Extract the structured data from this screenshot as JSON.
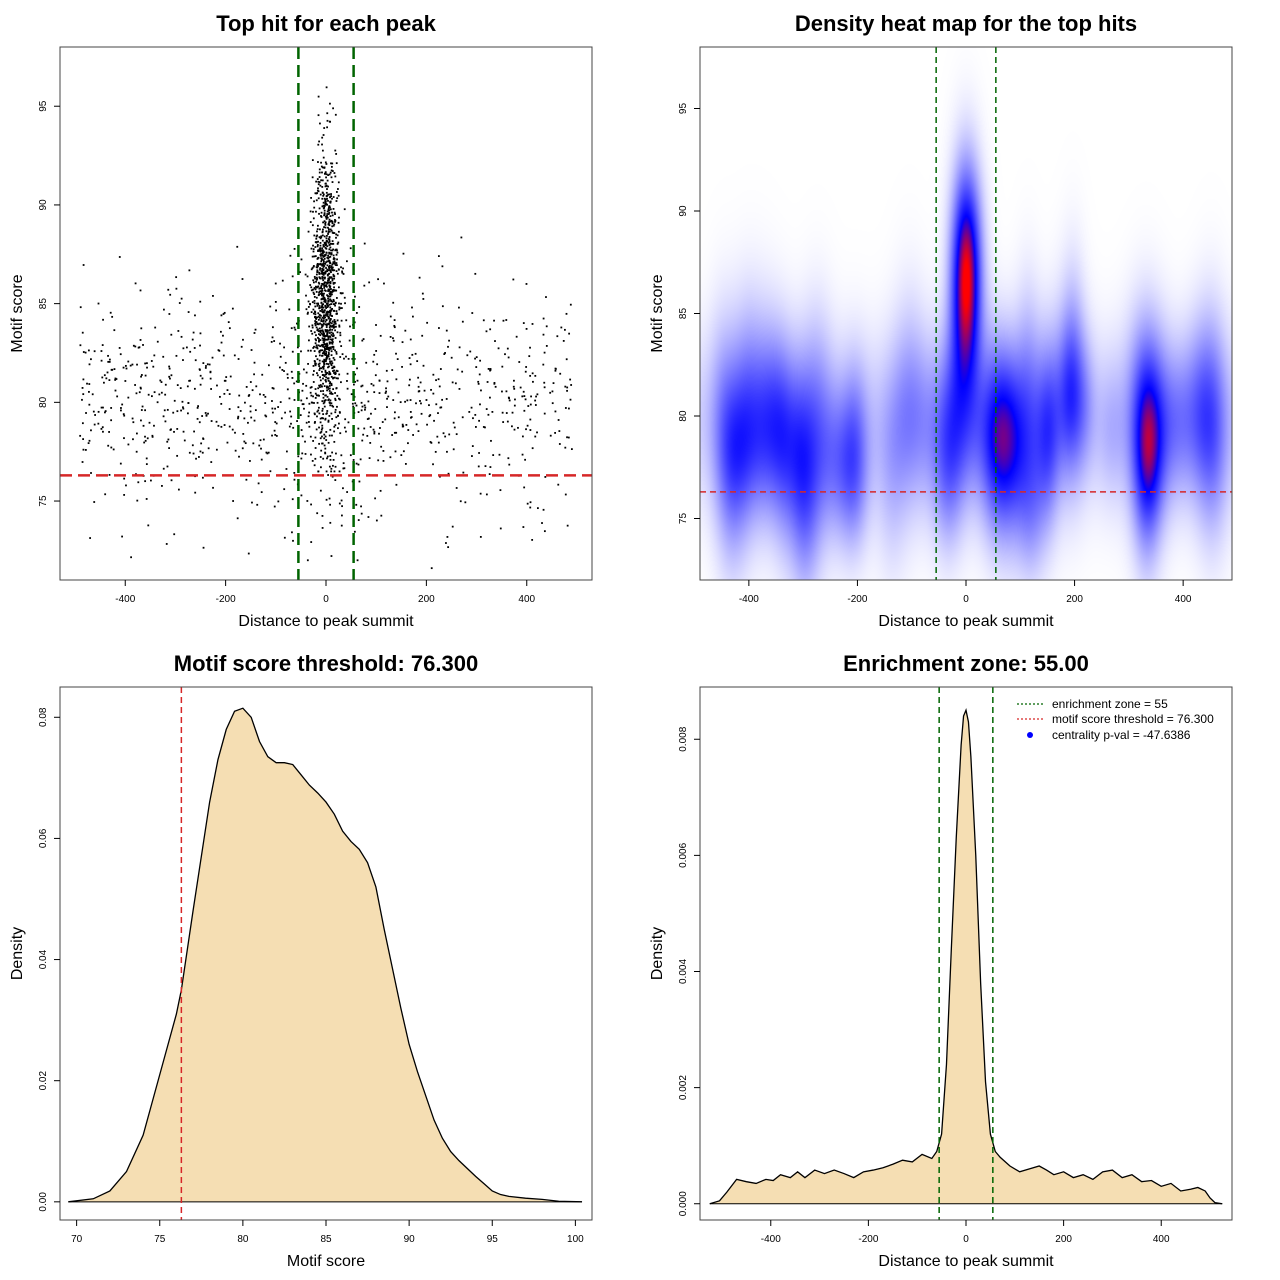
{
  "figure_titles": {
    "p1": "Top hit for each peak",
    "p2": "Density heat map for the top hits",
    "p3": "Motif score threshold: 76.300",
    "p4": "Enrichment zone: 55.00"
  },
  "axis_labels": {
    "p1_x": "Distance to peak summit",
    "p1_y": "Motif score",
    "p2_x": "Distance to peak summit",
    "p2_y": "Motif score",
    "p3_x": "Motif score",
    "p3_y": "Density",
    "p4_x": "Distance to peak summit",
    "p4_y": "Density"
  },
  "legend": {
    "enrichment": "enrichment zone = 55",
    "threshold": "motif score threshold = 76.300",
    "pval": "centrality p-val = -47.6386"
  },
  "colors": {
    "zone_line": "#006400",
    "threshold_line": "#d62728",
    "density_fill": "#f5deb3",
    "points": "#000000",
    "legend_dot": "#0000ff"
  },
  "chart_data": [
    {
      "type": "scatter",
      "title": "Top hit for each peak",
      "xlabel": "Distance to peak summit",
      "ylabel": "Motif score",
      "xlim": [
        -530,
        530
      ],
      "ylim": [
        71,
        98
      ],
      "xticks": [
        -400,
        -200,
        0,
        200,
        400
      ],
      "yticks": [
        75,
        80,
        85,
        90,
        95
      ],
      "vlines": [
        -55,
        55
      ],
      "hline": 76.3,
      "points_description": "about 2000 top hits; dense central column within about ±40 of the summit with scores mostly 78-94; sparse background across -490..490 with scores 72-88"
    },
    {
      "type": "heatmap",
      "title": "Density heat map for the top hits",
      "xlabel": "Distance to peak summit",
      "ylabel": "Motif score",
      "xlim": [
        -490,
        490
      ],
      "ylim": [
        72,
        98
      ],
      "xticks": [
        -400,
        -200,
        0,
        200,
        400
      ],
      "yticks": [
        75,
        80,
        85,
        90,
        95
      ],
      "vlines": [
        -55,
        55
      ],
      "hline": 76.3,
      "peak": {
        "x": 0,
        "y": 86.8
      }
    },
    {
      "type": "area",
      "title": "Motif score threshold: 76.300",
      "xlabel": "Motif score",
      "ylabel": "Density",
      "xlim": [
        69,
        101
      ],
      "ylim": [
        -0.003,
        0.085
      ],
      "xticks": [
        70,
        75,
        80,
        85,
        90,
        95,
        100
      ],
      "yticks": [
        0,
        0.02,
        0.04,
        0.06,
        0.08
      ],
      "ytick_labels": [
        "0.00",
        "0.02",
        "0.04",
        "0.06",
        "0.08"
      ],
      "vline": 76.3,
      "x": [
        69.5,
        71,
        72,
        73,
        74,
        75,
        76,
        76.3,
        77,
        78,
        78.5,
        79,
        79.5,
        80,
        80.5,
        81,
        81.5,
        82,
        82.5,
        83,
        83.5,
        84,
        84.5,
        85,
        85.5,
        86,
        86.5,
        87,
        87.5,
        88,
        88.5,
        89,
        89.5,
        90,
        90.5,
        91,
        91.5,
        92,
        92.5,
        93,
        93.5,
        94,
        94.5,
        95,
        95.5,
        96,
        97,
        98,
        99,
        100.4
      ],
      "y": [
        0.0,
        0.0005,
        0.0018,
        0.005,
        0.011,
        0.021,
        0.031,
        0.035,
        0.048,
        0.066,
        0.073,
        0.078,
        0.081,
        0.0815,
        0.08,
        0.076,
        0.0735,
        0.0725,
        0.0725,
        0.0722,
        0.0705,
        0.0688,
        0.0675,
        0.066,
        0.064,
        0.0612,
        0.0595,
        0.0582,
        0.056,
        0.052,
        0.045,
        0.0385,
        0.032,
        0.026,
        0.0215,
        0.0175,
        0.0135,
        0.0105,
        0.0083,
        0.0068,
        0.0055,
        0.0042,
        0.003,
        0.0018,
        0.0012,
        0.0009,
        0.0006,
        0.0004,
        0.0001,
        0.0
      ]
    },
    {
      "type": "area",
      "title": "Enrichment zone: 55.00",
      "xlabel": "Distance to peak summit",
      "ylabel": "Density",
      "xlim": [
        -545,
        545
      ],
      "ylim": [
        -0.00028,
        0.0089
      ],
      "xticks": [
        -400,
        -200,
        0,
        200,
        400
      ],
      "yticks": [
        0,
        0.002,
        0.004,
        0.006,
        0.008
      ],
      "ytick_labels": [
        "0.000",
        "0.002",
        "0.004",
        "0.006",
        "0.008"
      ],
      "vlines": [
        -55,
        55
      ],
      "x": [
        -525,
        -505,
        -490,
        -470,
        -450,
        -430,
        -410,
        -395,
        -380,
        -360,
        -345,
        -330,
        -310,
        -290,
        -270,
        -250,
        -230,
        -210,
        -190,
        -170,
        -150,
        -130,
        -110,
        -90,
        -70,
        -60,
        -50,
        -40,
        -30,
        -20,
        -10,
        -5,
        0,
        5,
        10,
        20,
        30,
        40,
        50,
        60,
        70,
        90,
        110,
        130,
        150,
        165,
        180,
        200,
        220,
        240,
        260,
        280,
        300,
        320,
        340,
        360,
        380,
        400,
        420,
        440,
        460,
        475,
        490,
        500,
        510,
        525
      ],
      "y": [
        0.0,
        5e-05,
        0.0002,
        0.00042,
        0.00038,
        0.00035,
        0.00042,
        0.0004,
        0.0005,
        0.00045,
        0.00055,
        0.00045,
        0.00058,
        0.00052,
        0.00058,
        0.00052,
        0.00045,
        0.00055,
        0.00058,
        0.00062,
        0.00068,
        0.00075,
        0.00072,
        0.00085,
        0.00078,
        0.0009,
        0.0012,
        0.0024,
        0.0044,
        0.0063,
        0.0079,
        0.0084,
        0.0085,
        0.0083,
        0.0077,
        0.006,
        0.0038,
        0.0021,
        0.0012,
        0.0009,
        0.0008,
        0.00065,
        0.00055,
        0.0006,
        0.00065,
        0.00058,
        0.0005,
        0.00055,
        0.00045,
        0.0005,
        0.00042,
        0.00055,
        0.00058,
        0.00045,
        0.0005,
        0.00038,
        0.0004,
        0.0003,
        0.00035,
        0.00022,
        0.00025,
        0.00028,
        0.00022,
        0.0001,
        2e-05,
        0.0
      ]
    }
  ]
}
